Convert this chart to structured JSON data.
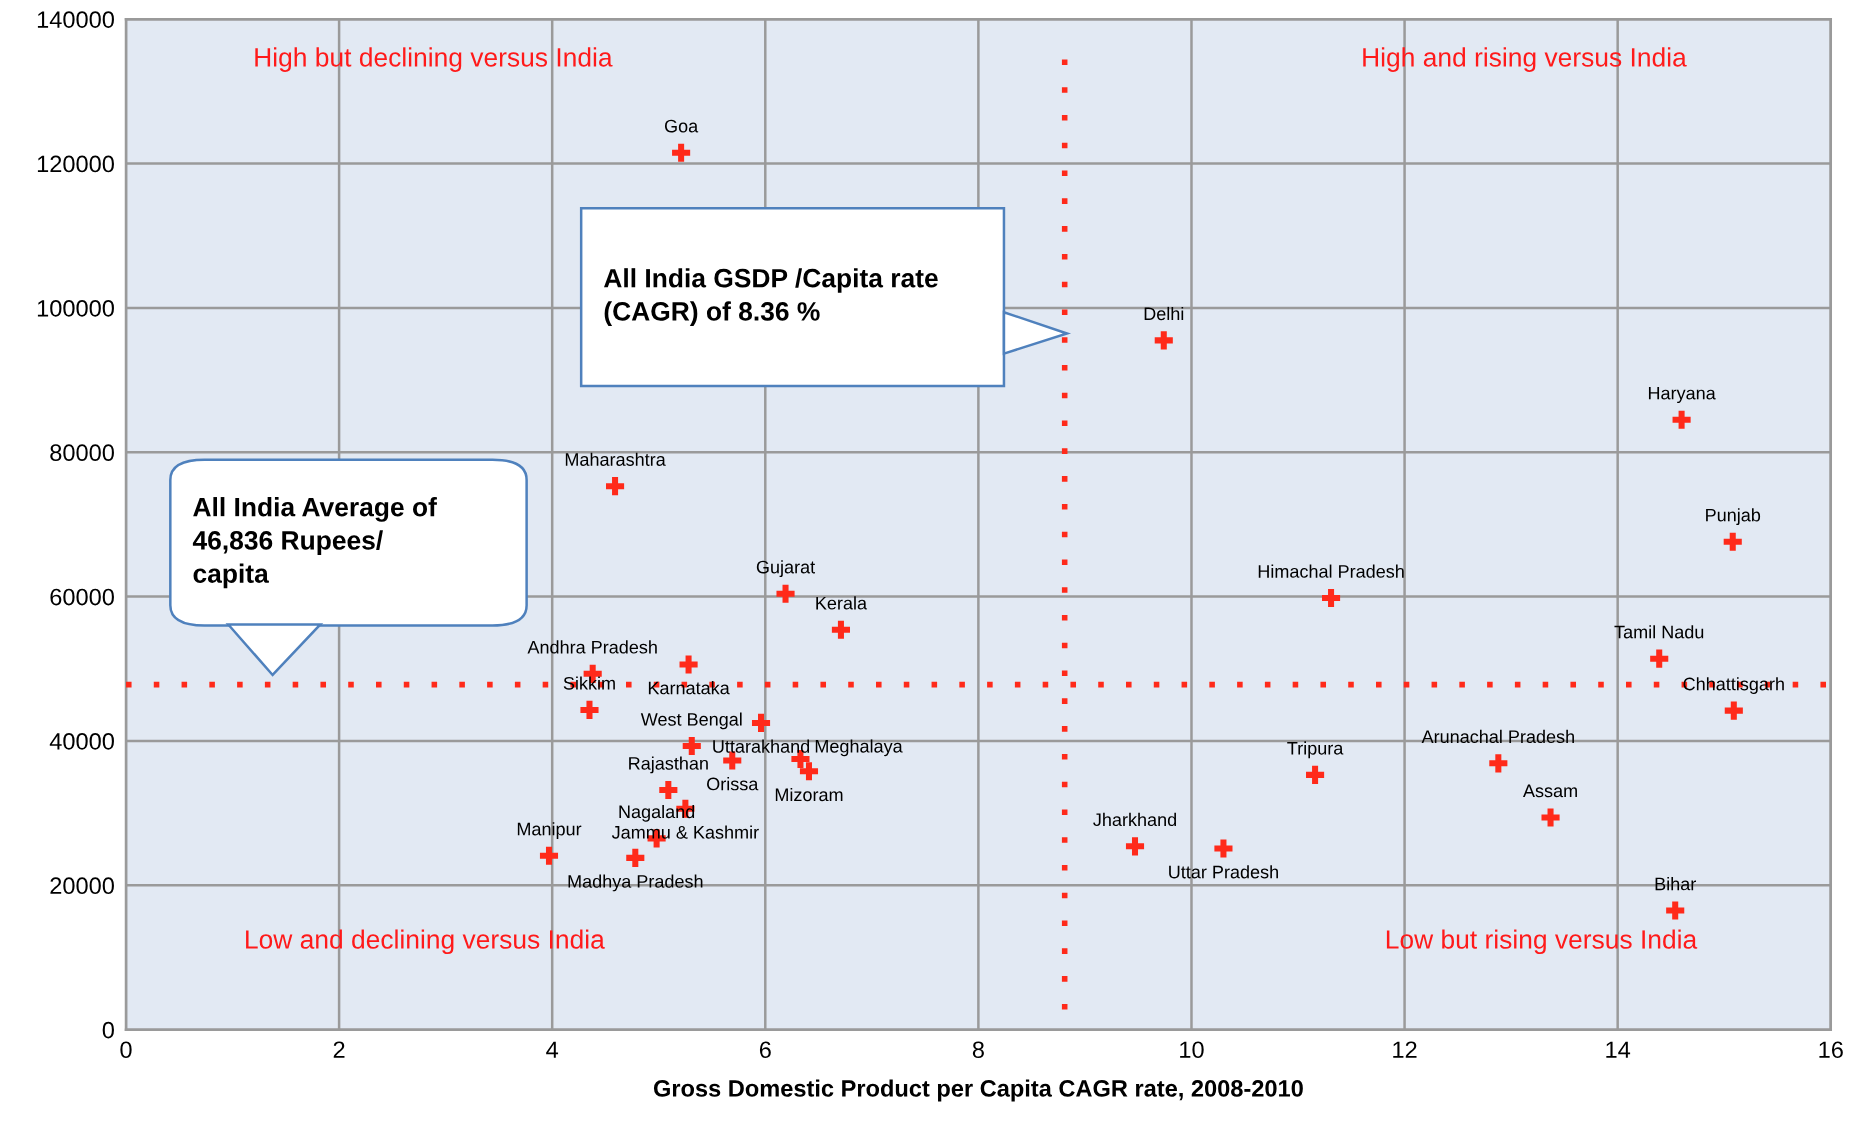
{
  "chart_data": {
    "type": "scatter",
    "xlabel": "Gross Domestic Product per Capita CAGR rate, 2008-2010",
    "x": [
      5.21,
      9.74,
      14.6,
      15.08,
      4.59,
      6.19,
      6.71,
      11.31,
      14.39,
      15.09,
      4.38,
      4.35,
      5.28,
      5.31,
      5.96,
      5.69,
      6.33,
      6.41,
      5.09,
      5.25,
      4.98,
      4.78,
      3.97,
      9.47,
      10.3,
      11.16,
      12.88,
      13.37,
      14.54
    ],
    "series": [
      {
        "color": "#ff2a1a",
        "values": [
          121500,
          95500,
          84500,
          67600,
          75300,
          60400,
          55400,
          59800,
          51400,
          44200,
          49300,
          44300,
          50600,
          39300,
          42500,
          37300,
          37500,
          35800,
          33200,
          30600,
          26500,
          23800,
          24100,
          25400,
          25100,
          35300,
          36900,
          29400,
          16500
        ]
      }
    ],
    "marker": "cross",
    "xlim": [
      0,
      16
    ],
    "ylim": [
      0,
      140000
    ],
    "xticks": [
      0,
      2,
      4,
      6,
      8,
      10,
      12,
      14,
      16
    ],
    "yticks": [
      0,
      20000,
      40000,
      60000,
      80000,
      100000,
      120000,
      140000
    ],
    "grid": true,
    "ref_lines": [
      {
        "axis": "x",
        "value": 8.81,
        "color": "#ff2a1a",
        "line_style": "dotted"
      },
      {
        "axis": "y",
        "value": 47800,
        "color": "#ff2a1a",
        "line_style": "dotted"
      }
    ],
    "annotations": [
      "High but declining versus India",
      "High and rising versus India",
      "Low and declining versus India",
      "Low but rising versus India",
      "All India GSDP /Capita rate\n(CAGR) of 8.36 %",
      "All India Average of\n46,836 Rupees/\ncapita",
      {
        "text": "Goa",
        "x": 5.21,
        "y": 121500
      },
      {
        "text": "Delhi",
        "x": 9.74,
        "y": 95500
      },
      {
        "text": "Haryana",
        "x": 14.6,
        "y": 84500
      },
      {
        "text": "Punjab",
        "x": 15.08,
        "y": 67600
      },
      {
        "text": "Maharashtra",
        "x": 4.59,
        "y": 75300
      },
      {
        "text": "Gujarat",
        "x": 6.19,
        "y": 60400
      },
      {
        "text": "Kerala",
        "x": 6.71,
        "y": 55400
      },
      {
        "text": "Himachal Pradesh",
        "x": 11.31,
        "y": 59800
      },
      {
        "text": "Tamil Nadu",
        "x": 14.39,
        "y": 51400
      },
      {
        "text": "Chhattisgarh",
        "x": 15.09,
        "y": 44200
      },
      {
        "text": "Andhra Pradesh",
        "x": 4.38,
        "y": 49300
      },
      {
        "text": "Sikkim",
        "x": 4.35,
        "y": 44300
      },
      {
        "text": "Karnataka",
        "x": 5.28,
        "y": 50600
      },
      {
        "text": "West Bengal",
        "x": 5.31,
        "y": 39300
      },
      {
        "text": "Uttarakhand",
        "x": 5.96,
        "y": 42500
      },
      {
        "text": "Orissa",
        "x": 5.69,
        "y": 37300
      },
      {
        "text": "Meghalaya",
        "x": 6.33,
        "y": 37500
      },
      {
        "text": "Mizoram",
        "x": 6.41,
        "y": 35800
      },
      {
        "text": "Rajasthan",
        "x": 5.09,
        "y": 33200
      },
      {
        "text": "Jammu & Kashmir",
        "x": 5.25,
        "y": 30600
      },
      {
        "text": "Nagaland",
        "x": 4.98,
        "y": 26500
      },
      {
        "text": "Madhya Pradesh",
        "x": 4.78,
        "y": 23800
      },
      {
        "text": "Manipur",
        "x": 3.97,
        "y": 24100
      },
      {
        "text": "Jharkhand",
        "x": 9.47,
        "y": 25400
      },
      {
        "text": "Uttar Pradesh",
        "x": 10.3,
        "y": 25100
      },
      {
        "text": "Tripura",
        "x": 11.16,
        "y": 35300
      },
      {
        "text": "Arunachal Pradesh",
        "x": 12.88,
        "y": 36900
      },
      {
        "text": "Assam",
        "x": 13.37,
        "y": 29400
      },
      {
        "text": "Bihar",
        "x": 14.54,
        "y": 16500
      }
    ]
  }
}
